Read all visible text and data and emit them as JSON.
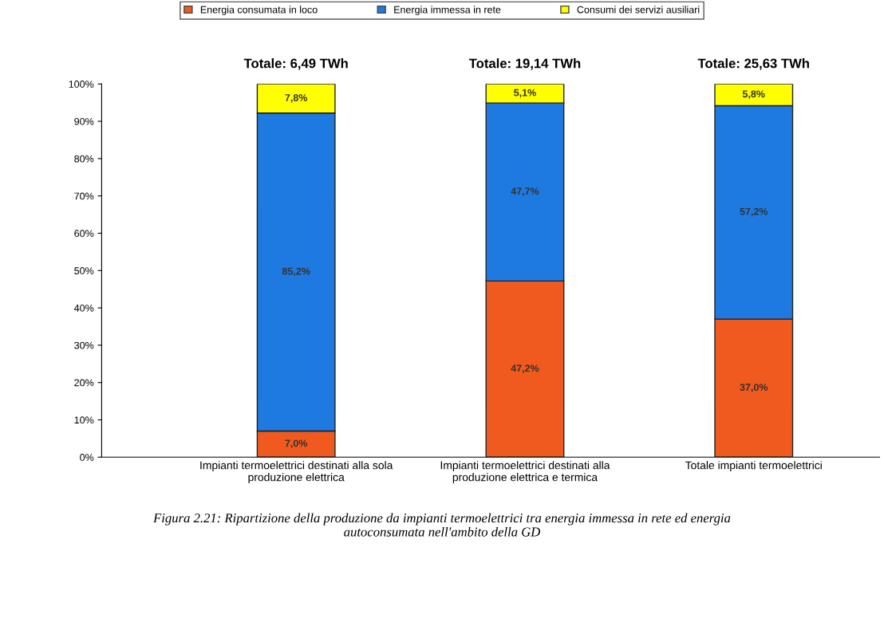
{
  "chart_data": {
    "type": "bar",
    "stacked": true,
    "categories": [
      "Impianti termoelettrici destinati alla sola\nproduzione elettrica",
      "Impianti termoelettrici destinati alla\nproduzione elettrica e termica",
      "Totale impianti termoelettrici"
    ],
    "series": [
      {
        "name": "Energia consumata in loco",
        "color": "#f05a1e",
        "values": [
          7.0,
          47.2,
          37.0
        ],
        "value_labels": [
          "7,0%",
          "47,2%",
          "37,0%"
        ]
      },
      {
        "name": "Energia immessa in rete",
        "color": "#1e7ae0",
        "values": [
          85.2,
          47.7,
          57.2
        ],
        "value_labels": [
          "85,2%",
          "47,7%",
          "57,2%"
        ]
      },
      {
        "name": "Consumi dei servizi ausiliari",
        "color": "#ffff00",
        "values": [
          7.8,
          5.1,
          5.8
        ],
        "value_labels": [
          "7,8%",
          "5,1%",
          "5,8%"
        ]
      }
    ],
    "ylim": [
      0,
      100
    ],
    "yticks": [
      {
        "value": 0,
        "label": "0%"
      },
      {
        "value": 10,
        "label": "10%"
      },
      {
        "value": 20,
        "label": "20%"
      },
      {
        "value": 30,
        "label": "30%"
      },
      {
        "value": 40,
        "label": "40%"
      },
      {
        "value": 50,
        "label": "50%"
      },
      {
        "value": 60,
        "label": "60%"
      },
      {
        "value": 70,
        "label": "70%"
      },
      {
        "value": 80,
        "label": "80%"
      },
      {
        "value": 90,
        "label": "90%"
      },
      {
        "value": 100,
        "label": "100%"
      }
    ],
    "legend": "top",
    "grid": false,
    "annotations": [
      {
        "text": "Totale: 6,49 TWh",
        "x": "Impianti termoelettrici destinati alla sola\nproduzione elettrica",
        "y": 100
      },
      {
        "text": "Totale: 19,14 TWh",
        "x": "Impianti termoelettrici destinati alla\nproduzione elettrica e termica",
        "y": 100
      },
      {
        "text": "Totale: 25,63 TWh",
        "x": "Totale impianti termoelettrici",
        "y": 100
      },
      "Figura 2.21: Ripartizione della produzione da impianti termoelettrici tra energia immessa in rete ed energia\nautoconsumata nell'ambito della GD"
    ]
  }
}
